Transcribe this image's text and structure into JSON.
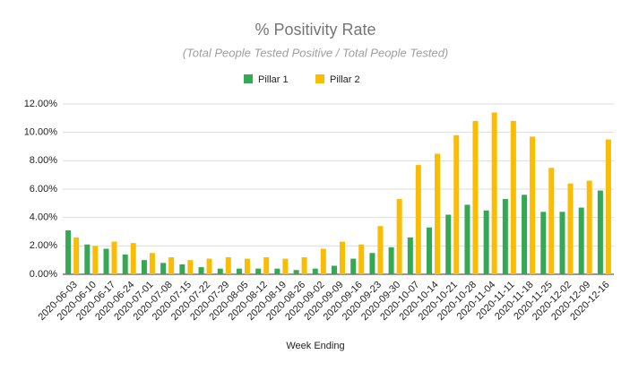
{
  "chart_data": {
    "type": "bar",
    "title": "% Positivity Rate",
    "subtitle": "(Total People Tested Positive / Total People Tested)",
    "x_label": "Week Ending",
    "categories": [
      "2020-06-03",
      "2020-06-10",
      "2020-06-17",
      "2020-06-24",
      "2020-07-01",
      "2020-07-08",
      "2020-07-15",
      "2020-07-22",
      "2020-07-29",
      "2020-08-05",
      "2020-08-12",
      "2020-08-19",
      "2020-08-26",
      "2020-09-02",
      "2020-09-09",
      "2020-09-16",
      "2020-09-23",
      "2020-09-30",
      "2020-10-07",
      "2020-10-14",
      "2020-10-21",
      "2020-10-28",
      "2020-11-04",
      "2020-11-11",
      "2020-11-18",
      "2020-11-25",
      "2020-12-02",
      "2020-12-09",
      "2020-12-16"
    ],
    "series": [
      {
        "name": "Pillar 1",
        "color": "#34a853",
        "values": [
          3.1,
          2.1,
          1.8,
          1.4,
          1.0,
          0.8,
          0.7,
          0.5,
          0.4,
          0.4,
          0.4,
          0.4,
          0.3,
          0.4,
          0.6,
          1.1,
          1.5,
          1.9,
          2.6,
          3.3,
          4.2,
          4.9,
          4.5,
          5.3,
          5.6,
          4.4,
          4.4,
          4.7,
          5.9
        ]
      },
      {
        "name": "Pillar 2",
        "color": "#fbbc04",
        "values": [
          2.6,
          2.0,
          2.3,
          2.2,
          1.5,
          1.2,
          1.0,
          1.1,
          1.2,
          1.1,
          1.2,
          1.1,
          1.2,
          1.8,
          2.3,
          2.1,
          3.4,
          5.3,
          7.7,
          8.5,
          9.8,
          10.8,
          11.4,
          10.8,
          9.7,
          7.5,
          6.4,
          6.6,
          9.5
        ]
      }
    ],
    "ylim": [
      0,
      12
    ],
    "yticks": [
      {
        "value": 0,
        "label": "0.00%"
      },
      {
        "value": 2,
        "label": "2.00%"
      },
      {
        "value": 4,
        "label": "4.00%"
      },
      {
        "value": 6,
        "label": "6.00%"
      },
      {
        "value": 8,
        "label": "8.00%"
      },
      {
        "value": 10,
        "label": "10.00%"
      },
      {
        "value": 12,
        "label": "12.00%"
      }
    ],
    "grid": true,
    "legend": "top"
  }
}
